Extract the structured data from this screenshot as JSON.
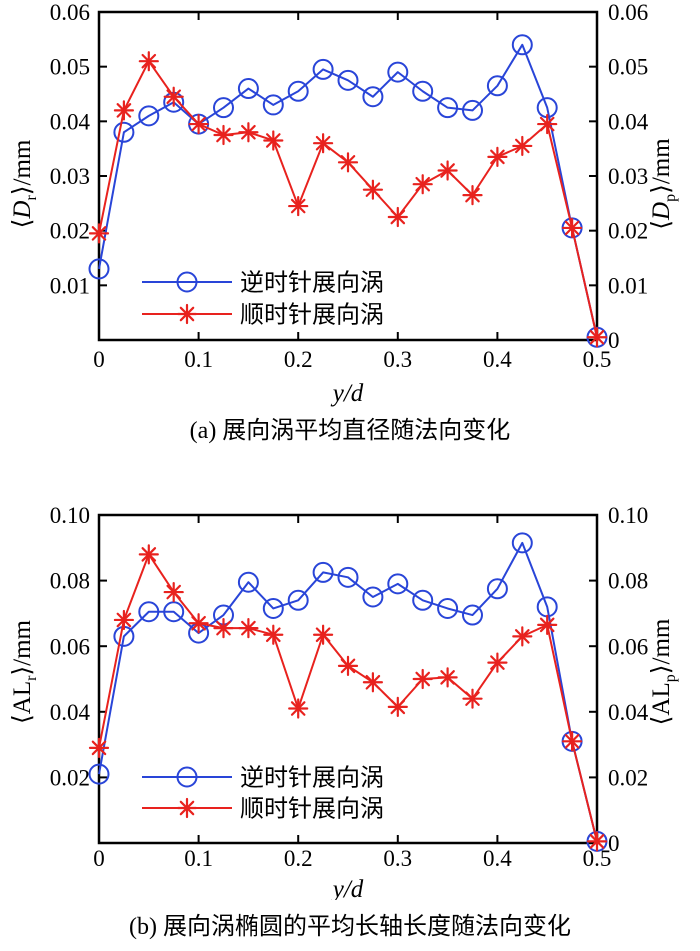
{
  "figure": {
    "background": "#ffffff",
    "axis_color": "#000000",
    "text_color": "#000000"
  },
  "chart_data": [
    {
      "panel": "a",
      "type": "line",
      "caption": "(a) 展向涡平均直径随法向变化",
      "xlabel": "y/d",
      "ylabel_left": {
        "bracket_open": "⟨",
        "symbol": "D",
        "symbol_italic": true,
        "subscript": "r",
        "bracket_close": "⟩",
        "unit": "/mm"
      },
      "ylabel_right": {
        "bracket_open": "⟨",
        "symbol": "D",
        "symbol_italic": true,
        "subscript": "p",
        "bracket_close": "⟩",
        "unit": "/mm"
      },
      "xlim": [
        0,
        0.5
      ],
      "ylim": [
        0,
        0.06
      ],
      "grid": false,
      "legend_position": "inside-lower-left",
      "legend_frame": false,
      "xticks": {
        "values": [
          0,
          0.1,
          0.2,
          0.3,
          0.4,
          0.5
        ],
        "labels": [
          "0",
          "0.1",
          "0.2",
          "0.3",
          "0.4",
          "0.5"
        ]
      },
      "yticks": {
        "values": [
          0,
          0.01,
          0.02,
          0.03,
          0.04,
          0.05,
          0.06
        ],
        "labels_left": [
          "",
          "0.01",
          "0.02",
          "0.03",
          "0.04",
          "0.05",
          "0.06"
        ],
        "labels_right": [
          "0",
          "0.01",
          "0.02",
          "0.03",
          "0.04",
          "0.05",
          "0.06"
        ]
      },
      "x": [
        0,
        0.025,
        0.05,
        0.075,
        0.1,
        0.125,
        0.15,
        0.175,
        0.2,
        0.225,
        0.25,
        0.275,
        0.3,
        0.325,
        0.35,
        0.375,
        0.4,
        0.425,
        0.45,
        0.475,
        0.5
      ],
      "series": [
        {
          "name": "逆时针展向涡",
          "marker": "circle",
          "color": "#2945d8",
          "values": [
            0.013,
            0.038,
            0.041,
            0.0435,
            0.0395,
            0.0425,
            0.046,
            0.043,
            0.0455,
            0.0495,
            0.0475,
            0.0445,
            0.049,
            0.0455,
            0.0425,
            0.042,
            0.0465,
            0.054,
            0.0425,
            0.0205,
            0.0005
          ]
        },
        {
          "name": "顺时针展向涡",
          "marker": "asterisk",
          "color": "#e8221e",
          "values": [
            0.0195,
            0.042,
            0.051,
            0.0445,
            0.0395,
            0.0375,
            0.038,
            0.0365,
            0.0245,
            0.036,
            0.0325,
            0.0275,
            0.0225,
            0.0285,
            0.031,
            0.0265,
            0.0335,
            0.0355,
            0.0395,
            0.0205,
            0.0005
          ]
        }
      ]
    },
    {
      "panel": "b",
      "type": "line",
      "caption": "(b) 展向涡椭圆的平均长轴长度随法向变化",
      "xlabel": "y/d",
      "ylabel_left": {
        "bracket_open": "⟨",
        "symbol": "AL",
        "symbol_italic": false,
        "subscript": "r",
        "bracket_close": "⟩",
        "unit": "/mm"
      },
      "ylabel_right": {
        "bracket_open": "⟨",
        "symbol": "AL",
        "symbol_italic": false,
        "subscript": "p",
        "bracket_close": "⟩",
        "unit": "/mm"
      },
      "xlim": [
        0,
        0.5
      ],
      "ylim": [
        0,
        0.1
      ],
      "grid": false,
      "legend_position": "inside-lower-left",
      "legend_frame": false,
      "xticks": {
        "values": [
          0,
          0.1,
          0.2,
          0.3,
          0.4,
          0.5
        ],
        "labels": [
          "0",
          "0.1",
          "0.2",
          "0.3",
          "0.4",
          "0.5"
        ]
      },
      "yticks": {
        "values": [
          0,
          0.02,
          0.04,
          0.06,
          0.08,
          0.1
        ],
        "labels_left": [
          "",
          "0.02",
          "0.04",
          "0.06",
          "0.08",
          "0.10"
        ],
        "labels_right": [
          "0",
          "0.02",
          "0.04",
          "0.06",
          "0.08",
          "0.10"
        ]
      },
      "x": [
        0,
        0.025,
        0.05,
        0.075,
        0.1,
        0.125,
        0.15,
        0.175,
        0.2,
        0.225,
        0.25,
        0.275,
        0.3,
        0.325,
        0.35,
        0.375,
        0.4,
        0.425,
        0.45,
        0.475,
        0.5
      ],
      "series": [
        {
          "name": "逆时针展向涡",
          "marker": "circle",
          "color": "#2945d8",
          "values": [
            0.021,
            0.063,
            0.0705,
            0.0705,
            0.064,
            0.0695,
            0.0795,
            0.0715,
            0.074,
            0.0825,
            0.081,
            0.075,
            0.079,
            0.074,
            0.0715,
            0.0695,
            0.0775,
            0.0915,
            0.072,
            0.031,
            0.0005
          ]
        },
        {
          "name": "顺时针展向涡",
          "marker": "asterisk",
          "color": "#e8221e",
          "values": [
            0.029,
            0.068,
            0.088,
            0.0765,
            0.067,
            0.0655,
            0.0655,
            0.0635,
            0.041,
            0.0635,
            0.054,
            0.049,
            0.0415,
            0.05,
            0.0505,
            0.044,
            0.055,
            0.063,
            0.0665,
            0.031,
            0.0005
          ]
        }
      ]
    }
  ]
}
